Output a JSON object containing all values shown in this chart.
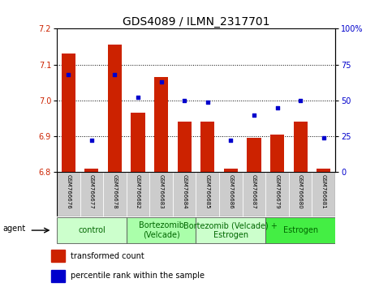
{
  "title": "GDS4089 / ILMN_2317701",
  "samples": [
    "GSM766676",
    "GSM766677",
    "GSM766678",
    "GSM766682",
    "GSM766683",
    "GSM766684",
    "GSM766685",
    "GSM766686",
    "GSM766687",
    "GSM766679",
    "GSM766680",
    "GSM766681"
  ],
  "bar_values": [
    7.13,
    6.81,
    7.155,
    6.965,
    7.065,
    6.94,
    6.94,
    6.81,
    6.895,
    6.905,
    6.94,
    6.81
  ],
  "dot_values": [
    68,
    22,
    68,
    52,
    63,
    50,
    49,
    22,
    40,
    45,
    50,
    24
  ],
  "bar_bottom": 6.8,
  "ylim_left": [
    6.8,
    7.2
  ],
  "ylim_right": [
    0,
    100
  ],
  "yticks_left": [
    6.8,
    6.9,
    7.0,
    7.1,
    7.2
  ],
  "yticks_right": [
    0,
    25,
    50,
    75,
    100
  ],
  "ytick_labels_right": [
    "0",
    "25",
    "50",
    "75",
    "100%"
  ],
  "hlines": [
    6.9,
    7.0,
    7.1
  ],
  "bar_color": "#cc2200",
  "dot_color": "#0000cc",
  "groups": [
    {
      "label": "control",
      "start": 0,
      "end": 2,
      "color": "#ccffcc"
    },
    {
      "label": "Bortezomib\n(Velcade)",
      "start": 3,
      "end": 5,
      "color": "#aaffaa"
    },
    {
      "label": "Bortezomib (Velcade) +\nEstrogen",
      "start": 6,
      "end": 8,
      "color": "#ccffcc"
    },
    {
      "label": "Estrogen",
      "start": 9,
      "end": 11,
      "color": "#44ee44"
    }
  ],
  "agent_label": "agent",
  "legend_red_label": "transformed count",
  "legend_blue_label": "percentile rank within the sample",
  "bar_color_legend": "#cc2200",
  "dot_color_legend": "#0000cc",
  "bar_width": 0.6,
  "background_color": "#ffffff",
  "plot_bg_color": "#ffffff",
  "tick_area_color": "#cccccc",
  "title_fontsize": 10,
  "axis_tick_fontsize": 7,
  "sample_fontsize": 5,
  "group_fontsize": 7,
  "legend_fontsize": 7
}
